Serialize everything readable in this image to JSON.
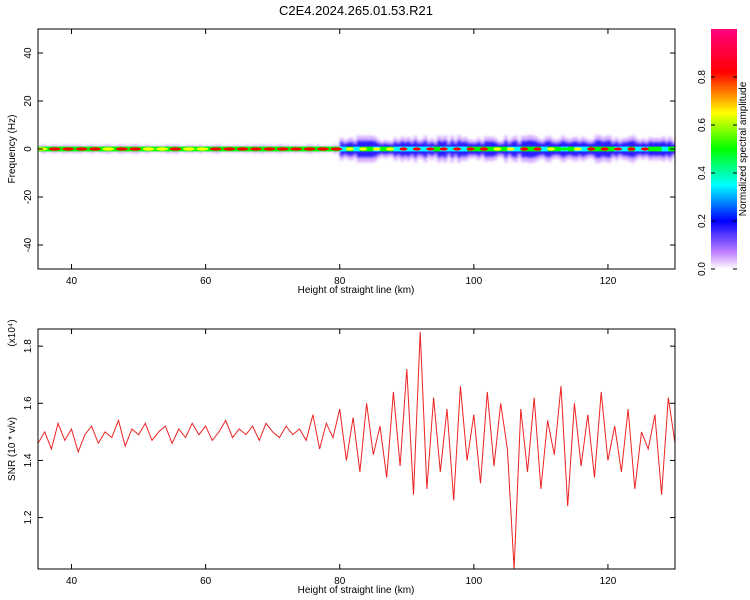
{
  "title": "C2E4.2024.265.01.53.R21",
  "chart_data": [
    {
      "type": "heatmap",
      "title": "C2E4.2024.265.01.53.R21",
      "xlabel": "Height of straight line (km)",
      "ylabel": "Frequency (Hz)",
      "xlim": [
        35,
        130
      ],
      "ylim": [
        -50,
        50
      ],
      "xticks": [
        "40",
        "60",
        "80",
        "100",
        "120"
      ],
      "yticks": [
        "40",
        "20",
        "0",
        "-20",
        "-40"
      ],
      "band": {
        "center_hz": 0,
        "core_halfwidth_hz": 1,
        "spread_halfwidth_hz_below_80km": 1.5,
        "spread_halfwidth_hz_above_80km": 4.5,
        "transition_km": 80
      },
      "colorbar": {
        "label": "Normalized spectral amplitude",
        "ticks": [
          "0.0",
          "0.2",
          "0.4",
          "0.6",
          "0.8"
        ],
        "range": [
          0,
          1
        ],
        "colors": [
          "#ffffff",
          "#c080ff",
          "#0000ff",
          "#00ffff",
          "#00ff00",
          "#ffff00",
          "#ff0000",
          "#ff0080"
        ]
      },
      "grid": false
    },
    {
      "type": "line",
      "xlabel": "Height of straight line (km)",
      "ylabel": "SNR (10 * v/v)",
      "yscale_label": "(x10⁴)",
      "xlim": [
        35,
        130
      ],
      "ylim": [
        1.02,
        1.86
      ],
      "xticks": [
        "40",
        "60",
        "80",
        "100",
        "120"
      ],
      "yticks": [
        "1.8",
        "1.6",
        "1.4",
        "1.2"
      ],
      "line_color": "#ee2222",
      "series": [
        {
          "x": [
            35,
            36,
            37,
            38,
            39,
            40,
            41,
            42,
            43,
            44,
            45,
            46,
            47,
            48,
            49,
            50,
            51,
            52,
            53,
            54,
            55,
            56,
            57,
            58,
            59,
            60,
            61,
            62,
            63,
            64,
            65,
            66,
            67,
            68,
            69,
            70,
            71,
            72,
            73,
            74,
            75,
            76,
            77,
            78,
            79,
            80,
            81,
            82,
            83,
            84,
            85,
            86,
            87,
            88,
            89,
            90,
            91,
            92,
            93,
            94,
            95,
            96,
            97,
            98,
            99,
            100,
            101,
            102,
            103,
            104,
            105,
            106,
            107,
            108,
            109,
            110,
            111,
            112,
            113,
            114,
            115,
            116,
            117,
            118,
            119,
            120,
            121,
            122,
            123,
            124,
            125,
            126,
            127,
            128,
            129,
            130
          ],
          "y": [
            1.46,
            1.5,
            1.44,
            1.53,
            1.47,
            1.51,
            1.43,
            1.49,
            1.52,
            1.46,
            1.5,
            1.48,
            1.54,
            1.45,
            1.51,
            1.49,
            1.53,
            1.47,
            1.5,
            1.52,
            1.46,
            1.51,
            1.48,
            1.53,
            1.49,
            1.52,
            1.47,
            1.5,
            1.54,
            1.48,
            1.51,
            1.49,
            1.52,
            1.47,
            1.53,
            1.5,
            1.48,
            1.52,
            1.49,
            1.51,
            1.47,
            1.56,
            1.44,
            1.53,
            1.48,
            1.58,
            1.4,
            1.55,
            1.36,
            1.6,
            1.42,
            1.52,
            1.34,
            1.64,
            1.38,
            1.72,
            1.28,
            1.85,
            1.3,
            1.62,
            1.36,
            1.58,
            1.26,
            1.66,
            1.4,
            1.56,
            1.32,
            1.64,
            1.38,
            1.6,
            1.44,
            1.02,
            1.58,
            1.36,
            1.62,
            1.3,
            1.54,
            1.42,
            1.66,
            1.24,
            1.6,
            1.38,
            1.56,
            1.34,
            1.64,
            1.4,
            1.52,
            1.36,
            1.58,
            1.3,
            1.5,
            1.44,
            1.56,
            1.28,
            1.62,
            1.46
          ]
        }
      ],
      "grid": false
    }
  ]
}
